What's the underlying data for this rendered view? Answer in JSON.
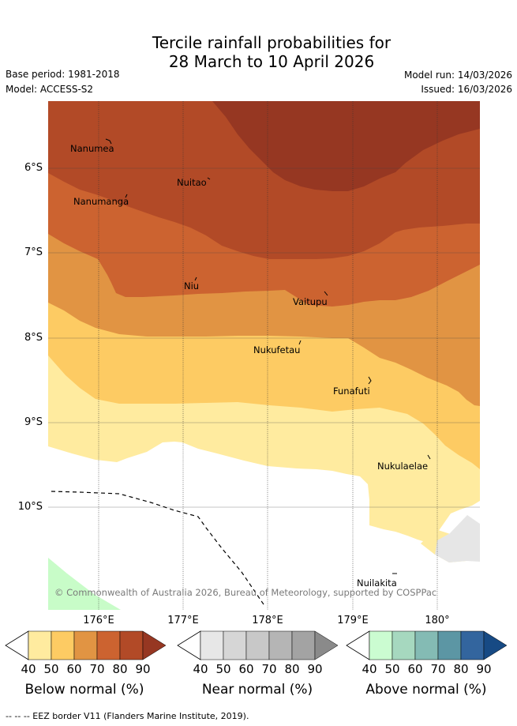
{
  "header": {
    "title_line1": "Tercile rainfall probabilities for",
    "title_line2": "28 March to 10 April 2026",
    "base_period": "Base period: 1981-2018",
    "model": "Model: ACCESS-S2",
    "model_run": "Model run: 14/03/2026",
    "issued": "Issued: 16/03/2026"
  },
  "map": {
    "lat_labels": [
      "6°S",
      "7°S",
      "8°S",
      "9°S",
      "10°S"
    ],
    "lon_labels": [
      "176°E",
      "177°E",
      "178°E",
      "179°E",
      "180°"
    ],
    "islands": [
      "Nanumea",
      "Nuitao",
      "Nanumanga",
      "Niu",
      "Vaitupu",
      "Nukufetau",
      "Funafuti",
      "Nukulaelae",
      "Nuilakita"
    ],
    "copyright": "© Commonwealth of Australia 2026, Bureau of Meteorology, supported by COSPPac"
  },
  "colorbars": [
    {
      "title": "Below normal (%)",
      "ticks": [
        "40",
        "50",
        "60",
        "70",
        "80",
        "90"
      ],
      "colors": [
        "#ffeb9f",
        "#fdcb63",
        "#e19443",
        "#cc6330",
        "#b24a27",
        "#963722"
      ]
    },
    {
      "title": "Near normal (%)",
      "ticks": [
        "40",
        "50",
        "60",
        "70",
        "80",
        "90"
      ],
      "colors": [
        "#e7e7e7",
        "#d6d6d6",
        "#c8c8c8",
        "#b5b5b5",
        "#a3a3a3",
        "#8a8a8a"
      ]
    },
    {
      "title": "Above normal (%)",
      "ticks": [
        "40",
        "50",
        "60",
        "70",
        "80",
        "90"
      ],
      "colors": [
        "#cbfcd1",
        "#a6d8bf",
        "#84bbb4",
        "#5c96a4",
        "#33659e",
        "#174a84"
      ]
    }
  ],
  "footer": "--  --  -- EEZ border V11 (Flanders Marine Institute, 2019)."
}
